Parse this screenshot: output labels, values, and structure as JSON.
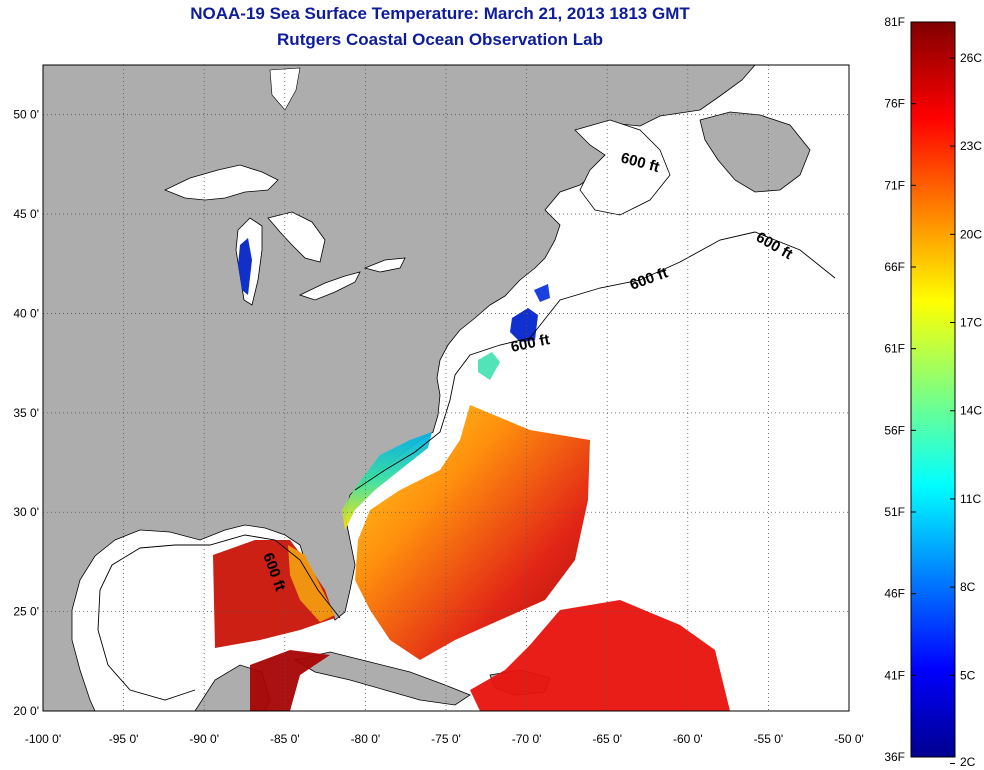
{
  "title": "NOAA-19 Sea Surface Temperature:  March 21, 2013 1813 GMT",
  "subtitle": "Rutgers Coastal Ocean Observation Lab",
  "map": {
    "x_ticks": [
      "-100 0'",
      "-95 0'",
      "-90 0'",
      "-85 0'",
      "-80 0'",
      "-75 0'",
      "-70 0'",
      "-65 0'",
      "-60 0'",
      "-55 0'",
      "-50 0'"
    ],
    "y_ticks": [
      "50 0'",
      "45 0'",
      "40 0'",
      "35 0'",
      "30 0'",
      "25 0'",
      "20 0'"
    ],
    "x_range": [
      -100,
      -50
    ],
    "y_range": [
      20,
      52.5
    ],
    "contour_labels": [
      "600 ft",
      "600 ft",
      "600 ft",
      "600 ft",
      "600 ft"
    ],
    "colors": {
      "land": "#adadad",
      "ocean": "#ffffff",
      "grid": "#555555"
    }
  },
  "colorbar": {
    "fahrenheit_labels": [
      "81F",
      "76F",
      "71F",
      "66F",
      "61F",
      "56F",
      "51F",
      "46F",
      "41F",
      "36F"
    ],
    "celsius_labels": [
      "26C",
      "23C",
      "20C",
      "17C",
      "14C",
      "11C",
      "8C",
      "5C",
      "2C"
    ],
    "colormap": "jet"
  }
}
